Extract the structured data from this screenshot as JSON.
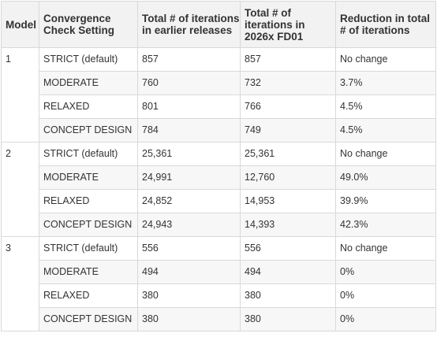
{
  "table": {
    "headers": [
      "Model",
      "Convergence Check Setting",
      "Total # of iterations in earlier releases",
      "Total # of iterations in 2026x FD01",
      "Reduction in total # of iterations"
    ],
    "groups": [
      {
        "model": "1",
        "rows": [
          {
            "setting": "STRICT (default)",
            "earlier": "857",
            "fd01": "857",
            "reduction": "No change"
          },
          {
            "setting": "MODERATE",
            "earlier": "760",
            "fd01": "732",
            "reduction": "3.7%"
          },
          {
            "setting": "RELAXED",
            "earlier": "801",
            "fd01": "766",
            "reduction": "4.5%"
          },
          {
            "setting": "CONCEPT DESIGN",
            "earlier": "784",
            "fd01": "749",
            "reduction": "4.5%"
          }
        ]
      },
      {
        "model": "2",
        "rows": [
          {
            "setting": "STRICT (default)",
            "earlier": "25,361",
            "fd01": "25,361",
            "reduction": "No change"
          },
          {
            "setting": "MODERATE",
            "earlier": "24,991",
            "fd01": "12,760",
            "reduction": "49.0%"
          },
          {
            "setting": "RELAXED",
            "earlier": "24,852",
            "fd01": "14,953",
            "reduction": "39.9%"
          },
          {
            "setting": "CONCEPT DESIGN",
            "earlier": "24,943",
            "fd01": "14,393",
            "reduction": "42.3%"
          }
        ]
      },
      {
        "model": "3",
        "rows": [
          {
            "setting": "STRICT (default)",
            "earlier": "556",
            "fd01": "556",
            "reduction": "No change"
          },
          {
            "setting": "MODERATE",
            "earlier": "494",
            "fd01": "494",
            "reduction": "0%"
          },
          {
            "setting": "RELAXED",
            "earlier": "380",
            "fd01": "380",
            "reduction": "0%"
          },
          {
            "setting": "CONCEPT DESIGN",
            "earlier": "380",
            "fd01": "380",
            "reduction": "0%"
          }
        ]
      }
    ]
  },
  "colors": {
    "header_bg": "#f2f2f2",
    "band_bg": "#f7f7f7",
    "border": "#d9d9d9",
    "text": "#333333"
  }
}
